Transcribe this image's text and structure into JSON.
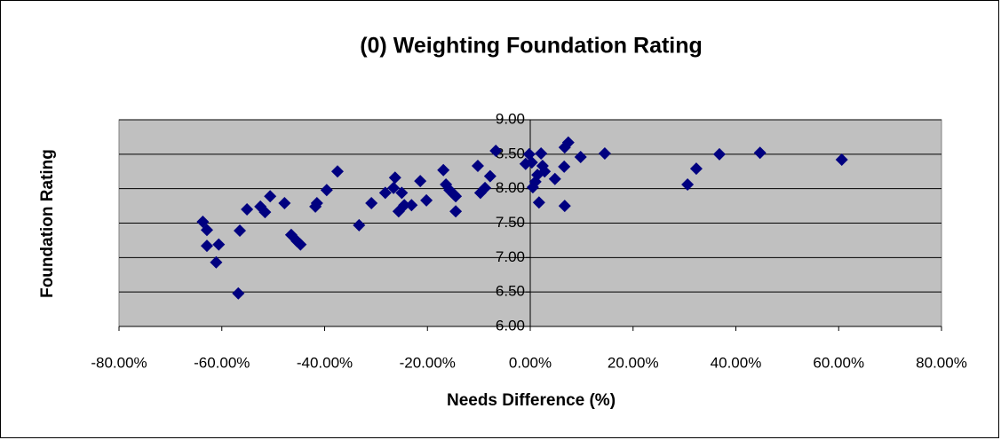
{
  "chart_data": {
    "type": "scatter",
    "title": "(0) Weighting Foundation Rating",
    "x_label": "Needs Difference (%)",
    "y_label": "Foundation Rating",
    "color": "#000080",
    "background": "#c0c0c0",
    "grid": true,
    "xlim": [
      -80,
      80
    ],
    "xticks": [
      {
        "value": -80,
        "label": "-80.00%"
      },
      {
        "value": -60,
        "label": "-60.00%"
      },
      {
        "value": -40,
        "label": "-40.00%"
      },
      {
        "value": -20,
        "label": "-20.00%"
      },
      {
        "value": 0,
        "label": "0.00%"
      },
      {
        "value": 20,
        "label": "20.00%"
      },
      {
        "value": 40,
        "label": "40.00%"
      },
      {
        "value": 60,
        "label": "60.00%"
      },
      {
        "value": 80,
        "label": "80.00%"
      }
    ],
    "ylim": [
      6,
      9
    ],
    "yticks": [
      {
        "value": 6,
        "label": "6.00"
      },
      {
        "value": 6.5,
        "label": "6.50"
      },
      {
        "value": 7,
        "label": "7.00"
      },
      {
        "value": 7.5,
        "label": "7.50"
      },
      {
        "value": 8,
        "label": "8.00"
      },
      {
        "value": 8.5,
        "label": "8.50"
      },
      {
        "value": 9,
        "label": "9.00"
      }
    ],
    "x": [
      -63.7,
      -62.9,
      -62.9,
      -60.6,
      -61.1,
      -56.5,
      -56.8,
      -55.1,
      -52.5,
      -51.6,
      -50.6,
      -47.8,
      -46.5,
      -45.4,
      -44.7,
      -41.8,
      -41.5,
      -39.6,
      -37.5,
      -33.3,
      -30.9,
      -28.2,
      -26.6,
      -26.3,
      -25.0,
      -25.6,
      -24.5,
      -23.1,
      -21.4,
      -20.2,
      -16.9,
      -16.4,
      -15.7,
      -14.5,
      -14.5,
      -14.9,
      -10.2,
      -9.7,
      -8.8,
      -7.8,
      -6.7,
      -0.9,
      -0.2,
      0.3,
      0.5,
      1.0,
      1.4,
      2.1,
      2.4,
      1.7,
      2.8,
      4.8,
      6.6,
      6.7,
      7.4,
      6.7,
      9.8,
      14.5,
      30.6,
      32.3,
      36.8,
      44.7,
      60.6
    ],
    "values": [
      7.52,
      7.4,
      7.17,
      7.19,
      6.93,
      7.39,
      6.48,
      7.7,
      7.74,
      7.66,
      7.89,
      7.79,
      7.33,
      7.24,
      7.19,
      7.74,
      7.79,
      7.98,
      8.25,
      7.47,
      7.79,
      7.94,
      8.01,
      8.16,
      7.94,
      7.67,
      7.76,
      7.76,
      8.11,
      7.83,
      8.27,
      8.06,
      7.98,
      7.89,
      7.67,
      7.92,
      8.33,
      7.94,
      8.01,
      8.18,
      8.55,
      8.36,
      8.5,
      8.38,
      8.02,
      8.1,
      8.2,
      8.51,
      8.33,
      7.8,
      8.25,
      8.14,
      8.32,
      8.6,
      8.67,
      7.75,
      8.46,
      8.51,
      8.06,
      8.29,
      8.5,
      8.52,
      8.42
    ]
  }
}
